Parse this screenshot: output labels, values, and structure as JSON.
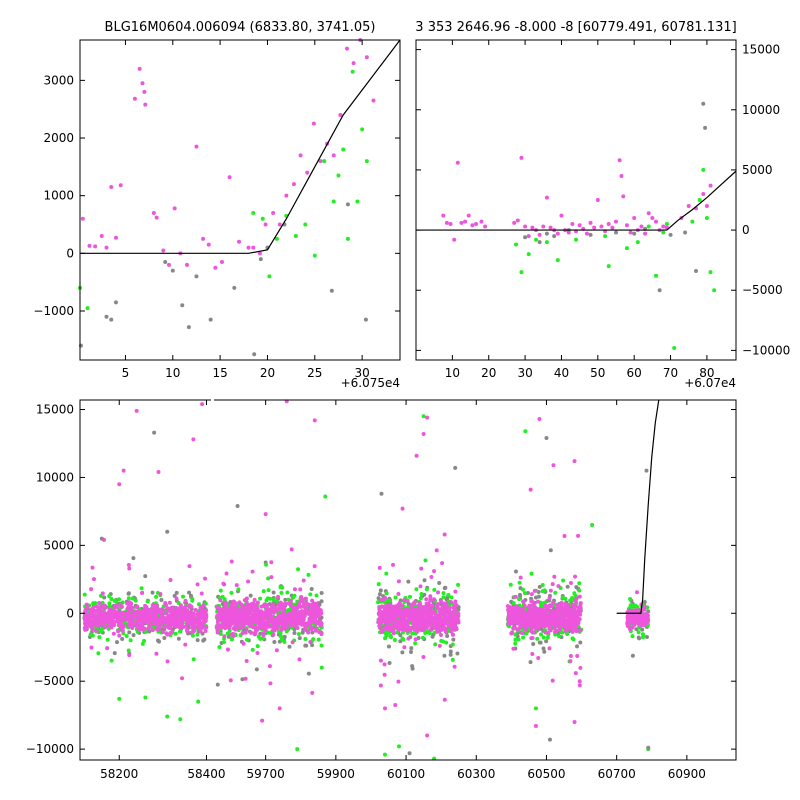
{
  "chart_data": [
    {
      "id": "top_left",
      "type": "scatter",
      "title": "BLG16M0604.006094 (6833.80, 3741.05)",
      "offset_label": "+6.075e4",
      "xlim": [
        0.2,
        34
      ],
      "ylim": [
        -1850,
        3700
      ],
      "xticks": [
        "5",
        "10",
        "15",
        "20",
        "25",
        "30"
      ],
      "xtick_values": [
        5,
        10,
        15,
        20,
        25,
        30
      ],
      "yticks": [
        "−1000",
        "0",
        "1000",
        "2000",
        "3000"
      ],
      "ytick_values": [
        -1000,
        0,
        1000,
        2000,
        3000
      ],
      "model_line": {
        "x": [
          0.2,
          18,
          20,
          22,
          25,
          28,
          31,
          34
        ],
        "y": [
          0,
          0,
          60,
          600,
          1500,
          2400,
          3050,
          3700
        ]
      },
      "series": [
        {
          "name": "magenta",
          "color": "#ee55dd",
          "x": [
            0.5,
            1.2,
            1.8,
            2.5,
            3.0,
            3.5,
            4.0,
            4.5,
            6.0,
            6.5,
            6.8,
            7.0,
            7.1,
            8.0,
            8.3,
            9.0,
            9.6,
            10.2,
            10.8,
            11.5,
            12.5,
            13.2,
            13.8,
            14.5,
            15.2,
            16.0,
            17.0,
            18.0,
            18.5,
            19.2,
            19.8,
            20.6,
            21.3,
            22.0,
            22.8,
            23.5,
            24.2,
            24.9,
            25.6,
            26.3,
            27.0,
            27.7,
            28.4,
            29.1,
            29.8,
            30.5,
            31.2
          ],
          "y": [
            600,
            130,
            120,
            300,
            100,
            1150,
            270,
            1180,
            2680,
            3200,
            2950,
            2800,
            2580,
            700,
            620,
            50,
            -200,
            780,
            0,
            -200,
            1850,
            250,
            150,
            -250,
            -150,
            1320,
            200,
            100,
            100,
            0,
            500,
            700,
            500,
            1000,
            1200,
            1700,
            1400,
            2250,
            1600,
            1900,
            1700,
            2400,
            3550,
            3300,
            3700,
            3400,
            2650
          ]
        },
        {
          "name": "green",
          "color": "#22ee22",
          "x": [
            0.2,
            1.0,
            18.5,
            19.5,
            20.2,
            21.0,
            22.0,
            23.0,
            24.0,
            25.0,
            26.0,
            27.0,
            27.5,
            28.0,
            28.5,
            29.0,
            29.5,
            30.0,
            30.5
          ],
          "y": [
            -600,
            -950,
            700,
            600,
            -400,
            250,
            650,
            300,
            500,
            -40,
            1600,
            900,
            1350,
            1800,
            250,
            3150,
            900,
            2150,
            1600
          ]
        },
        {
          "name": "gray",
          "color": "#888888",
          "x": [
            0.3,
            3.0,
            3.5,
            4.0,
            9.2,
            10.0,
            11.0,
            11.7,
            12.5,
            14.0,
            16.5,
            18.6,
            19.3,
            20.0,
            21.8,
            26.8,
            28.5,
            30.4
          ],
          "y": [
            -1600,
            -1100,
            -1150,
            -850,
            -150,
            -300,
            -900,
            -1280,
            -400,
            -1150,
            -600,
            -1750,
            -100,
            100,
            500,
            -650,
            850,
            -1150
          ]
        }
      ]
    },
    {
      "id": "top_right",
      "type": "scatter",
      "title": "3 353 2646.96 -8.000 -8 [60779.491, 60781.131]",
      "offset_label": "+6.07e4",
      "xlim": [
        0,
        88
      ],
      "ylim": [
        -10800,
        15800
      ],
      "xticks": [
        "10",
        "20",
        "30",
        "40",
        "50",
        "60",
        "70",
        "80"
      ],
      "xtick_values": [
        10,
        20,
        30,
        40,
        50,
        60,
        70,
        80
      ],
      "yticks": [
        "−10000",
        "−5000",
        "0",
        "5000",
        "10000",
        "15000"
      ],
      "ytick_values": [
        -10000,
        -5000,
        0,
        5000,
        10000,
        15000
      ],
      "model_line": {
        "x": [
          0,
          69,
          72,
          76,
          80,
          84,
          88
        ],
        "y": [
          0,
          0,
          800,
          1700,
          2700,
          3800,
          4900
        ]
      },
      "series": [
        {
          "name": "magenta",
          "color": "#ee55dd",
          "x": [
            7.5,
            8.5,
            9.5,
            10.5,
            11.5,
            12.5,
            13.5,
            14.5,
            15.5,
            16.5,
            18.0,
            19.0,
            27.0,
            28.0,
            29.0,
            30.0,
            31.0,
            32.0,
            33.0,
            34.0,
            35.0,
            36.0,
            37.0,
            38.0,
            39.0,
            40.0,
            41.0,
            42.0,
            43.0,
            44.0,
            45.0,
            46.0,
            47.0,
            48.0,
            49.0,
            50.0,
            51.0,
            52.0,
            53.0,
            54.0,
            55.0,
            56.0,
            56.5,
            57.0,
            58.0,
            59.0,
            60.0,
            61.0,
            62.0,
            63.0,
            64.0,
            65.0,
            66.0,
            67.0,
            68.0,
            69.0,
            73.0,
            75.0,
            77.0,
            79.0,
            80.0,
            81.0
          ],
          "y": [
            1200,
            600,
            500,
            -800,
            5600,
            600,
            700,
            1200,
            400,
            500,
            700,
            300,
            600,
            800,
            6000,
            300,
            -500,
            200,
            0,
            -400,
            300,
            2700,
            200,
            0,
            -300,
            1200,
            0,
            -200,
            500,
            -100,
            400,
            100,
            -300,
            600,
            200,
            2500,
            300,
            -100,
            500,
            200,
            700,
            5800,
            4500,
            2800,
            400,
            -200,
            1000,
            0,
            300,
            -300,
            1400,
            1000,
            700,
            0,
            300,
            200,
            1000,
            2000,
            1800,
            3000,
            2000,
            3700
          ]
        },
        {
          "name": "green",
          "color": "#22ee22",
          "x": [
            27.5,
            29.0,
            31.0,
            33.0,
            36.0,
            39.0,
            44.0,
            52.0,
            53.0,
            58.0,
            61.0,
            64.0,
            66.0,
            68.0,
            69.0,
            71.0,
            76.0,
            78.0,
            79.0,
            80.0,
            81.0,
            82.0
          ],
          "y": [
            -1200,
            -3500,
            -2000,
            -800,
            -1000,
            -2500,
            -800,
            -500,
            -3000,
            -1500,
            -1000,
            300,
            -3800,
            -200,
            500,
            -9800,
            700,
            2500,
            5000,
            1000,
            -3500,
            -5000
          ]
        },
        {
          "name": "gray",
          "color": "#888888",
          "x": [
            30.0,
            34.0,
            36.0,
            38.0,
            42.0,
            48.0,
            55.0,
            60.0,
            63.0,
            67.0,
            70.0,
            74.0,
            77.0,
            79.0,
            79.5
          ],
          "y": [
            -600,
            -1000,
            -300,
            -500,
            0,
            -400,
            -200,
            -300,
            100,
            -5000,
            -400,
            -200,
            -3400,
            10500,
            8500
          ]
        }
      ]
    },
    {
      "id": "bottom",
      "type": "scatter",
      "title": "",
      "xlim": [
        58110,
        61040
      ],
      "ylim": [
        -10800,
        15700
      ],
      "break_gap": [
        58415,
        59550
      ],
      "left_xlim": [
        58110,
        58415
      ],
      "right_xlim": [
        59550,
        61040
      ],
      "xticks": [
        "58200",
        "58400",
        "59700",
        "59900",
        "60100",
        "60300",
        "60500",
        "60700",
        "60900"
      ],
      "xtick_values": [
        58200,
        58400,
        59700,
        59900,
        60100,
        60300,
        60500,
        60700,
        60900
      ],
      "yticks": [
        "−10000",
        "−5000",
        "0",
        "5000",
        "10000",
        "15000"
      ],
      "ytick_values": [
        -10000,
        -5000,
        0,
        5000,
        10000,
        15000
      ],
      "model_line": {
        "x": [
          60700,
          60769,
          60774,
          60780,
          60790,
          60800,
          60810,
          60820
        ],
        "y": [
          0,
          0,
          1000,
          4000,
          8000,
          11500,
          14000,
          15700
        ]
      },
      "seasons": [
        {
          "start": 58120,
          "end": 58400,
          "spread": 2600
        },
        {
          "start": 59560,
          "end": 59860,
          "spread": 3000
        },
        {
          "start": 60020,
          "end": 60250,
          "spread": 3200
        },
        {
          "start": 60390,
          "end": 60600,
          "spread": 3000
        },
        {
          "start": 60730,
          "end": 60790,
          "spread": 2000
        }
      ],
      "outliers": {
        "magenta": [
          [
            58200,
            9500
          ],
          [
            58210,
            10500
          ],
          [
            58240,
            14900
          ],
          [
            58290,
            10400
          ],
          [
            58370,
            12800
          ],
          [
            58390,
            15400
          ],
          [
            58165,
            5400
          ],
          [
            59700,
            7300
          ],
          [
            59760,
            15600
          ],
          [
            59840,
            14200
          ],
          [
            60090,
            7700
          ],
          [
            60130,
            11600
          ],
          [
            60160,
            14400
          ],
          [
            60150,
            13200
          ],
          [
            60210,
            5800
          ],
          [
            60455,
            9100
          ],
          [
            60480,
            14300
          ],
          [
            60520,
            10900
          ],
          [
            60580,
            11200
          ],
          [
            60590,
            5700
          ],
          [
            59690,
            -7900
          ],
          [
            59740,
            -7000
          ],
          [
            60040,
            -7000
          ],
          [
            60160,
            -9000
          ],
          [
            60470,
            -8300
          ],
          [
            60580,
            -8000
          ]
        ],
        "green": [
          [
            58200,
            -6300
          ],
          [
            58260,
            -6200
          ],
          [
            58310,
            -7600
          ],
          [
            58340,
            -7800
          ],
          [
            59790,
            -10000
          ],
          [
            59870,
            8600
          ],
          [
            59860,
            -4000
          ],
          [
            60040,
            -10400
          ],
          [
            60080,
            -9800
          ],
          [
            60150,
            14500
          ],
          [
            60180,
            -10700
          ],
          [
            60440,
            13400
          ],
          [
            60470,
            -7000
          ],
          [
            60630,
            6500
          ],
          [
            60790,
            -10000
          ]
        ],
        "gray": [
          [
            58160,
            5500
          ],
          [
            58280,
            13300
          ],
          [
            58310,
            6000
          ],
          [
            59620,
            7900
          ],
          [
            60030,
            8800
          ],
          [
            60240,
            10700
          ],
          [
            60500,
            12900
          ],
          [
            60785,
            10500
          ],
          [
            60510,
            -9300
          ],
          [
            60110,
            -10300
          ],
          [
            60790,
            -9900
          ]
        ]
      }
    }
  ]
}
